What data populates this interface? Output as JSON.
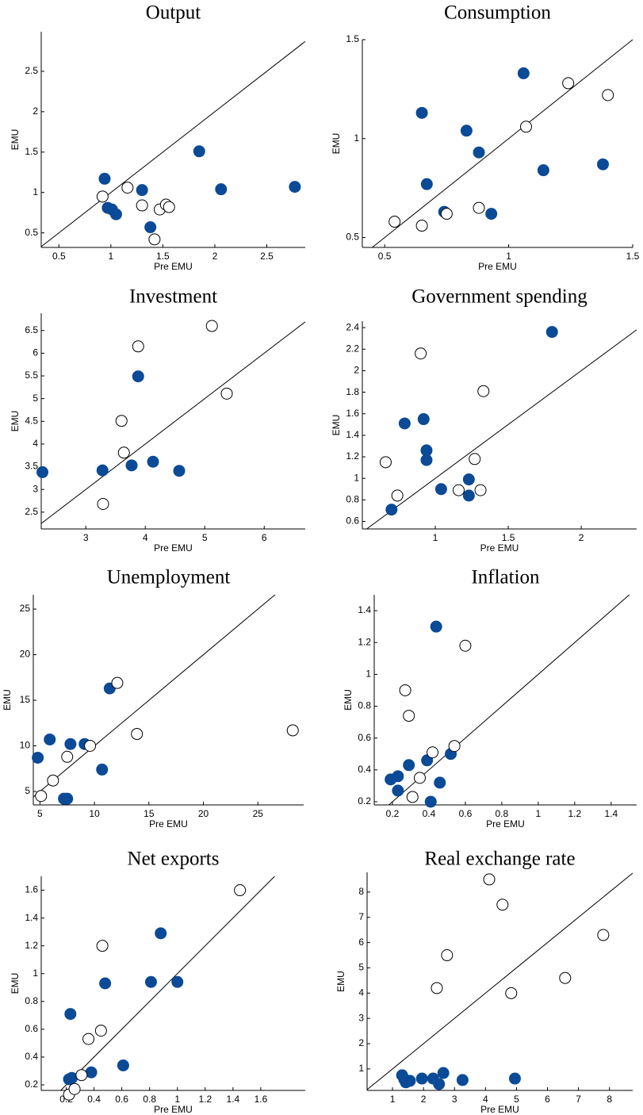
{
  "chart_data": [
    {
      "type": "scatter",
      "title": "Output",
      "x_label": "Pre EMU",
      "y_label": "EMU",
      "identity_line": true,
      "xlim": [
        0.33,
        2.87
      ],
      "xticks": [
        0.5,
        1,
        1.5,
        2,
        2.5
      ],
      "ylim": [
        0.32,
        2.99
      ],
      "yticks": [
        0.5,
        1,
        1.5,
        2,
        2.5
      ],
      "series": [
        {
          "marker": "filled",
          "color": "#0b4a96",
          "x": [
            0.94,
            0.97,
            1.01,
            1.05,
            1.3,
            1.38,
            1.85,
            2.06,
            2.77
          ],
          "y": [
            1.17,
            0.81,
            0.79,
            0.73,
            1.03,
            0.57,
            1.51,
            1.04,
            1.07
          ]
        },
        {
          "marker": "open",
          "color": "#000000",
          "x": [
            0.92,
            1.16,
            1.3,
            1.42,
            1.47,
            1.53,
            1.56
          ],
          "y": [
            0.95,
            1.06,
            0.84,
            0.42,
            0.79,
            0.85,
            0.82
          ]
        }
      ]
    },
    {
      "type": "scatter",
      "title": "Consumption",
      "x_label": "Pre EMU",
      "y_label": "EMU",
      "identity_line": true,
      "xlim": [
        0.41,
        1.5
      ],
      "xticks": [
        0.5,
        1,
        1.5
      ],
      "ylim": [
        0.45,
        1.5
      ],
      "yticks": [
        0.5,
        1,
        1.5
      ],
      "series": [
        {
          "marker": "filled",
          "color": "#0b4a96",
          "x": [
            0.65,
            0.67,
            0.74,
            0.83,
            0.88,
            0.93,
            1.06,
            1.14,
            1.38
          ],
          "y": [
            1.13,
            0.77,
            0.63,
            1.04,
            0.93,
            0.62,
            1.33,
            0.84,
            0.87
          ]
        },
        {
          "marker": "open",
          "color": "#000000",
          "x": [
            0.54,
            0.65,
            0.75,
            0.88,
            1.07,
            1.24,
            1.4
          ],
          "y": [
            0.58,
            0.56,
            0.62,
            0.65,
            1.06,
            1.28,
            1.22
          ]
        }
      ]
    },
    {
      "type": "scatter",
      "title": "Investment",
      "x_label": "Pre EMU",
      "y_label": "EMU",
      "identity_line": true,
      "xlim": [
        2.25,
        6.69
      ],
      "xticks": [
        3,
        4,
        5,
        6
      ],
      "ylim": [
        2.13,
        6.88
      ],
      "yticks": [
        2.5,
        3,
        3.5,
        4,
        4.5,
        5,
        5.5,
        6,
        6.5
      ],
      "series": [
        {
          "marker": "filled",
          "color": "#0b4a96",
          "x": [
            2.27,
            3.28,
            3.77,
            3.88,
            4.13,
            4.57
          ],
          "y": [
            3.38,
            3.42,
            3.53,
            5.49,
            3.61,
            3.41
          ]
        },
        {
          "marker": "open",
          "color": "#000000",
          "x": [
            3.29,
            3.6,
            3.64,
            3.88,
            5.12,
            5.37
          ],
          "y": [
            2.68,
            4.51,
            3.81,
            6.15,
            6.6,
            5.11
          ]
        }
      ]
    },
    {
      "type": "scatter",
      "title": "Government spending",
      "x_label": "Pre EMU",
      "y_label": "EMU",
      "identity_line": true,
      "xlim": [
        0.5,
        2.38
      ],
      "xticks": [
        1,
        1.5,
        2
      ],
      "ylim": [
        0.53,
        2.46
      ],
      "yticks": [
        0.6,
        0.8,
        1,
        1.2,
        1.4,
        1.6,
        1.8,
        2,
        2.2,
        2.4
      ],
      "series": [
        {
          "marker": "filled",
          "color": "#0b4a96",
          "x": [
            0.7,
            0.79,
            0.92,
            0.94,
            0.94,
            1.04,
            1.23,
            1.23,
            1.8
          ],
          "y": [
            0.71,
            1.51,
            1.55,
            1.26,
            1.17,
            0.9,
            0.99,
            0.84,
            2.36
          ]
        },
        {
          "marker": "open",
          "color": "#000000",
          "x": [
            0.66,
            0.74,
            0.9,
            1.16,
            1.27,
            1.31,
            1.33
          ],
          "y": [
            1.15,
            0.84,
            2.16,
            0.89,
            1.18,
            0.89,
            1.81
          ]
        }
      ]
    },
    {
      "type": "scatter",
      "title": "Unemployment",
      "x_label": "Pre EMU",
      "y_label": "EMU",
      "identity_line": true,
      "xlim": [
        4.39,
        29.2
      ],
      "xticks": [
        5,
        10,
        15,
        20,
        25
      ],
      "ylim": [
        3.52,
        26.57
      ],
      "yticks": [
        5,
        10,
        15,
        20,
        25
      ],
      "series": [
        {
          "marker": "filled",
          "color": "#0b4a96",
          "x": [
            4.8,
            5.9,
            7.2,
            7.5,
            7.8,
            9.1,
            10.7,
            11.4
          ],
          "y": [
            8.7,
            10.7,
            4.2,
            4.2,
            10.2,
            10.2,
            7.4,
            16.3
          ]
        },
        {
          "marker": "open",
          "color": "#000000",
          "x": [
            5.1,
            6.2,
            7.5,
            9.6,
            12.1,
            13.9,
            28.2
          ],
          "y": [
            4.5,
            6.2,
            8.8,
            10.0,
            16.9,
            11.3,
            11.7
          ]
        }
      ]
    },
    {
      "type": "scatter",
      "title": "Inflation",
      "x_label": "Pre EMU",
      "y_label": "EMU",
      "identity_line": true,
      "xlim": [
        0.1,
        1.54
      ],
      "xticks": [
        0.2,
        0.4,
        0.6,
        0.8,
        1,
        1.2,
        1.4
      ],
      "ylim": [
        0.18,
        1.5
      ],
      "yticks": [
        0.2,
        0.4,
        0.6,
        0.8,
        1,
        1.2,
        1.4
      ],
      "series": [
        {
          "marker": "filled",
          "color": "#0b4a96",
          "x": [
            0.19,
            0.23,
            0.23,
            0.29,
            0.39,
            0.41,
            0.44,
            0.46,
            0.52
          ],
          "y": [
            0.34,
            0.36,
            0.27,
            0.43,
            0.46,
            0.2,
            1.3,
            0.32,
            0.5
          ]
        },
        {
          "marker": "open",
          "color": "#000000",
          "x": [
            0.27,
            0.29,
            0.31,
            0.35,
            0.42,
            0.54,
            0.6
          ],
          "y": [
            0.9,
            0.74,
            0.23,
            0.35,
            0.51,
            0.55,
            1.18
          ]
        }
      ]
    },
    {
      "type": "scatter",
      "title": "Net exports",
      "x_label": "Pre EMU",
      "y_label": "EMU",
      "identity_line": true,
      "xlim": [
        0.02,
        1.92
      ],
      "xticks": [
        0.2,
        0.4,
        0.6,
        0.8,
        1,
        1.2,
        1.4,
        1.6
      ],
      "ylim": [
        0.16,
        1.7
      ],
      "yticks": [
        0.2,
        0.4,
        0.6,
        0.8,
        1,
        1.2,
        1.4,
        1.6
      ],
      "series": [
        {
          "marker": "filled",
          "color": "#0b4a96",
          "x": [
            0.22,
            0.23,
            0.24,
            0.38,
            0.48,
            0.61,
            0.81,
            0.88,
            1.0
          ],
          "y": [
            0.24,
            0.71,
            0.25,
            0.29,
            0.93,
            0.34,
            0.94,
            1.29,
            0.94
          ]
        },
        {
          "marker": "open",
          "color": "#000000",
          "x": [
            0.22,
            0.26,
            0.31,
            0.36,
            0.45,
            0.46,
            1.45
          ],
          "y": [
            0.13,
            0.17,
            0.27,
            0.53,
            0.59,
            1.2,
            1.6
          ]
        }
      ]
    },
    {
      "type": "scatter",
      "title": "Real exchange rate",
      "x_label": "Pre EMU",
      "y_label": "EMU",
      "identity_line": true,
      "xlim": [
        0.18,
        8.75
      ],
      "xticks": [
        1,
        2,
        3,
        4,
        5,
        6,
        7,
        8
      ],
      "ylim": [
        0.15,
        8.78
      ],
      "yticks": [
        1,
        2,
        3,
        4,
        5,
        6,
        7,
        8
      ],
      "series": [
        {
          "marker": "filled",
          "color": "#0b4a96",
          "x": [
            1.31,
            1.38,
            1.43,
            1.56,
            1.95,
            2.31,
            2.5,
            2.64,
            3.26,
            4.95
          ],
          "y": [
            0.75,
            0.59,
            0.47,
            0.53,
            0.62,
            0.62,
            0.4,
            0.84,
            0.56,
            0.62
          ]
        },
        {
          "marker": "open",
          "color": "#000000",
          "x": [
            2.43,
            2.76,
            4.12,
            4.55,
            4.83,
            6.57,
            7.8
          ],
          "y": [
            4.2,
            5.5,
            8.5,
            7.5,
            4.0,
            4.6,
            6.3
          ]
        }
      ]
    }
  ]
}
